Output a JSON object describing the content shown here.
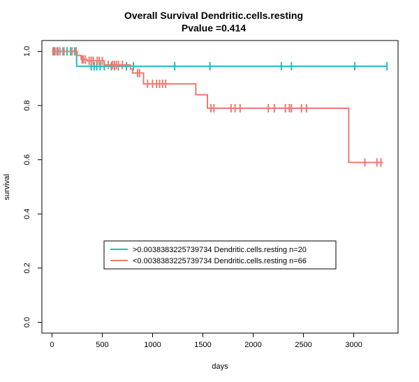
{
  "chart_data": {
    "type": "line",
    "title": "Overall Survival Dendritic.cells.resting",
    "subtitle": "Pvalue =0.414",
    "xlabel": "days",
    "ylabel": "survival",
    "xlim": [
      -100,
      3440
    ],
    "ylim": [
      -0.04,
      1.04
    ],
    "x_ticks": [
      0,
      500,
      1000,
      1500,
      2000,
      2500,
      3000
    ],
    "y_ticks": [
      0.0,
      0.2,
      0.4,
      0.6,
      0.8,
      1.0
    ],
    "y_tick_labels": [
      "0.0",
      "0.2",
      "0.4",
      "0.6",
      "0.8",
      "1.0"
    ],
    "legend_position": "bottom-center",
    "series": [
      {
        "name": ">0.0038383225739734 Dendritic.cells.resting n=20",
        "color": "#1CBDC2",
        "steps": [
          [
            0,
            1.0
          ],
          [
            245,
            0.945
          ],
          [
            3335,
            0.945
          ]
        ],
        "censored": [
          [
            20,
            1.0
          ],
          [
            60,
            1.0
          ],
          [
            110,
            1.0
          ],
          [
            150,
            1.0
          ],
          [
            185,
            1.0
          ],
          [
            225,
            1.0
          ],
          [
            390,
            0.945
          ],
          [
            420,
            0.945
          ],
          [
            445,
            0.945
          ],
          [
            480,
            0.945
          ],
          [
            520,
            0.945
          ],
          [
            590,
            0.945
          ],
          [
            620,
            0.945
          ],
          [
            660,
            0.945
          ],
          [
            740,
            0.945
          ],
          [
            810,
            0.945
          ],
          [
            1220,
            0.945
          ],
          [
            1570,
            0.945
          ],
          [
            2280,
            0.945
          ],
          [
            2380,
            0.945
          ],
          [
            3010,
            0.945
          ],
          [
            3330,
            0.945
          ]
        ]
      },
      {
        "name": "<0.0038383225739734 Dendritic.cells.resting n=66",
        "color": "#F0786E",
        "steps": [
          [
            0,
            1.0
          ],
          [
            250,
            0.985
          ],
          [
            290,
            0.97
          ],
          [
            350,
            0.965
          ],
          [
            520,
            0.95
          ],
          [
            780,
            0.935
          ],
          [
            800,
            0.92
          ],
          [
            910,
            0.88
          ],
          [
            1430,
            0.84
          ],
          [
            1545,
            0.79
          ],
          [
            2950,
            0.59
          ],
          [
            3290,
            0.59
          ]
        ],
        "censored": [
          [
            10,
            1.0
          ],
          [
            30,
            1.0
          ],
          [
            50,
            1.0
          ],
          [
            80,
            1.0
          ],
          [
            120,
            1.0
          ],
          [
            200,
            1.0
          ],
          [
            240,
            1.0
          ],
          [
            300,
            0.97
          ],
          [
            310,
            0.97
          ],
          [
            330,
            0.97
          ],
          [
            370,
            0.965
          ],
          [
            390,
            0.965
          ],
          [
            410,
            0.965
          ],
          [
            450,
            0.965
          ],
          [
            470,
            0.965
          ],
          [
            500,
            0.965
          ],
          [
            560,
            0.95
          ],
          [
            600,
            0.95
          ],
          [
            620,
            0.95
          ],
          [
            640,
            0.95
          ],
          [
            660,
            0.95
          ],
          [
            700,
            0.95
          ],
          [
            850,
            0.92
          ],
          [
            870,
            0.92
          ],
          [
            950,
            0.88
          ],
          [
            1000,
            0.88
          ],
          [
            1040,
            0.88
          ],
          [
            1070,
            0.88
          ],
          [
            1100,
            0.88
          ],
          [
            1130,
            0.88
          ],
          [
            1580,
            0.79
          ],
          [
            1610,
            0.79
          ],
          [
            1780,
            0.79
          ],
          [
            1820,
            0.79
          ],
          [
            1870,
            0.79
          ],
          [
            2150,
            0.79
          ],
          [
            2210,
            0.79
          ],
          [
            2320,
            0.79
          ],
          [
            2360,
            0.79
          ],
          [
            2380,
            0.79
          ],
          [
            2480,
            0.79
          ],
          [
            2530,
            0.79
          ],
          [
            3110,
            0.59
          ],
          [
            3230,
            0.59
          ],
          [
            3270,
            0.59
          ]
        ]
      }
    ]
  }
}
